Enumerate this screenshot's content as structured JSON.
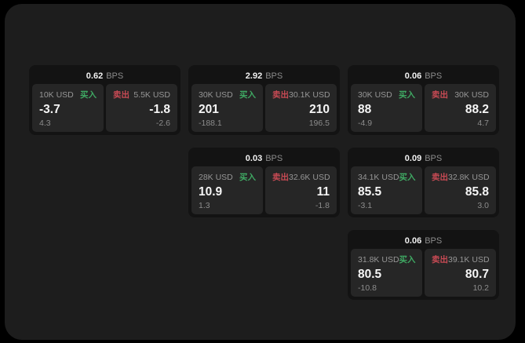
{
  "labels": {
    "buy": "买入",
    "sell": "卖出",
    "bps_unit": "BPS"
  },
  "colors": {
    "background": "#000000",
    "panel_bg": "#1d1d1d",
    "card_bg": "#131313",
    "subcard_bg": "#262626",
    "buy_green": "#3fa963",
    "sell_red": "#c74a54",
    "value_white": "#f5f5f5",
    "muted_gray": "#8c8c8c"
  },
  "cards": [
    {
      "row": 1,
      "col": 1,
      "bps": "0.62",
      "buy": {
        "amount": "10K USD",
        "value": "-3.7",
        "delta": "4.3"
      },
      "sell": {
        "amount": "5.5K USD",
        "value": "-1.8",
        "delta": "-2.6"
      }
    },
    {
      "row": 1,
      "col": 2,
      "bps": "2.92",
      "buy": {
        "amount": "30K USD",
        "value": "201",
        "delta": "-188.1"
      },
      "sell": {
        "amount": "30.1K USD",
        "value": "210",
        "delta": "196.5"
      }
    },
    {
      "row": 1,
      "col": 3,
      "bps": "0.06",
      "buy": {
        "amount": "30K USD",
        "value": "88",
        "delta": "-4.9"
      },
      "sell": {
        "amount": "30K USD",
        "value": "88.2",
        "delta": "4.7"
      }
    },
    {
      "row": 2,
      "col": 2,
      "bps": "0.03",
      "buy": {
        "amount": "28K USD",
        "value": "10.9",
        "delta": "1.3"
      },
      "sell": {
        "amount": "32.6K USD",
        "value": "11",
        "delta": "-1.8"
      }
    },
    {
      "row": 2,
      "col": 3,
      "bps": "0.09",
      "buy": {
        "amount": "34.1K USD",
        "value": "85.5",
        "delta": "-3.1"
      },
      "sell": {
        "amount": "32.8K USD",
        "value": "85.8",
        "delta": "3.0"
      }
    },
    {
      "row": 3,
      "col": 3,
      "bps": "0.06",
      "buy": {
        "amount": "31.8K USD",
        "value": "80.5",
        "delta": "-10.8"
      },
      "sell": {
        "amount": "39.1K USD",
        "value": "80.7",
        "delta": "10.2"
      }
    }
  ]
}
